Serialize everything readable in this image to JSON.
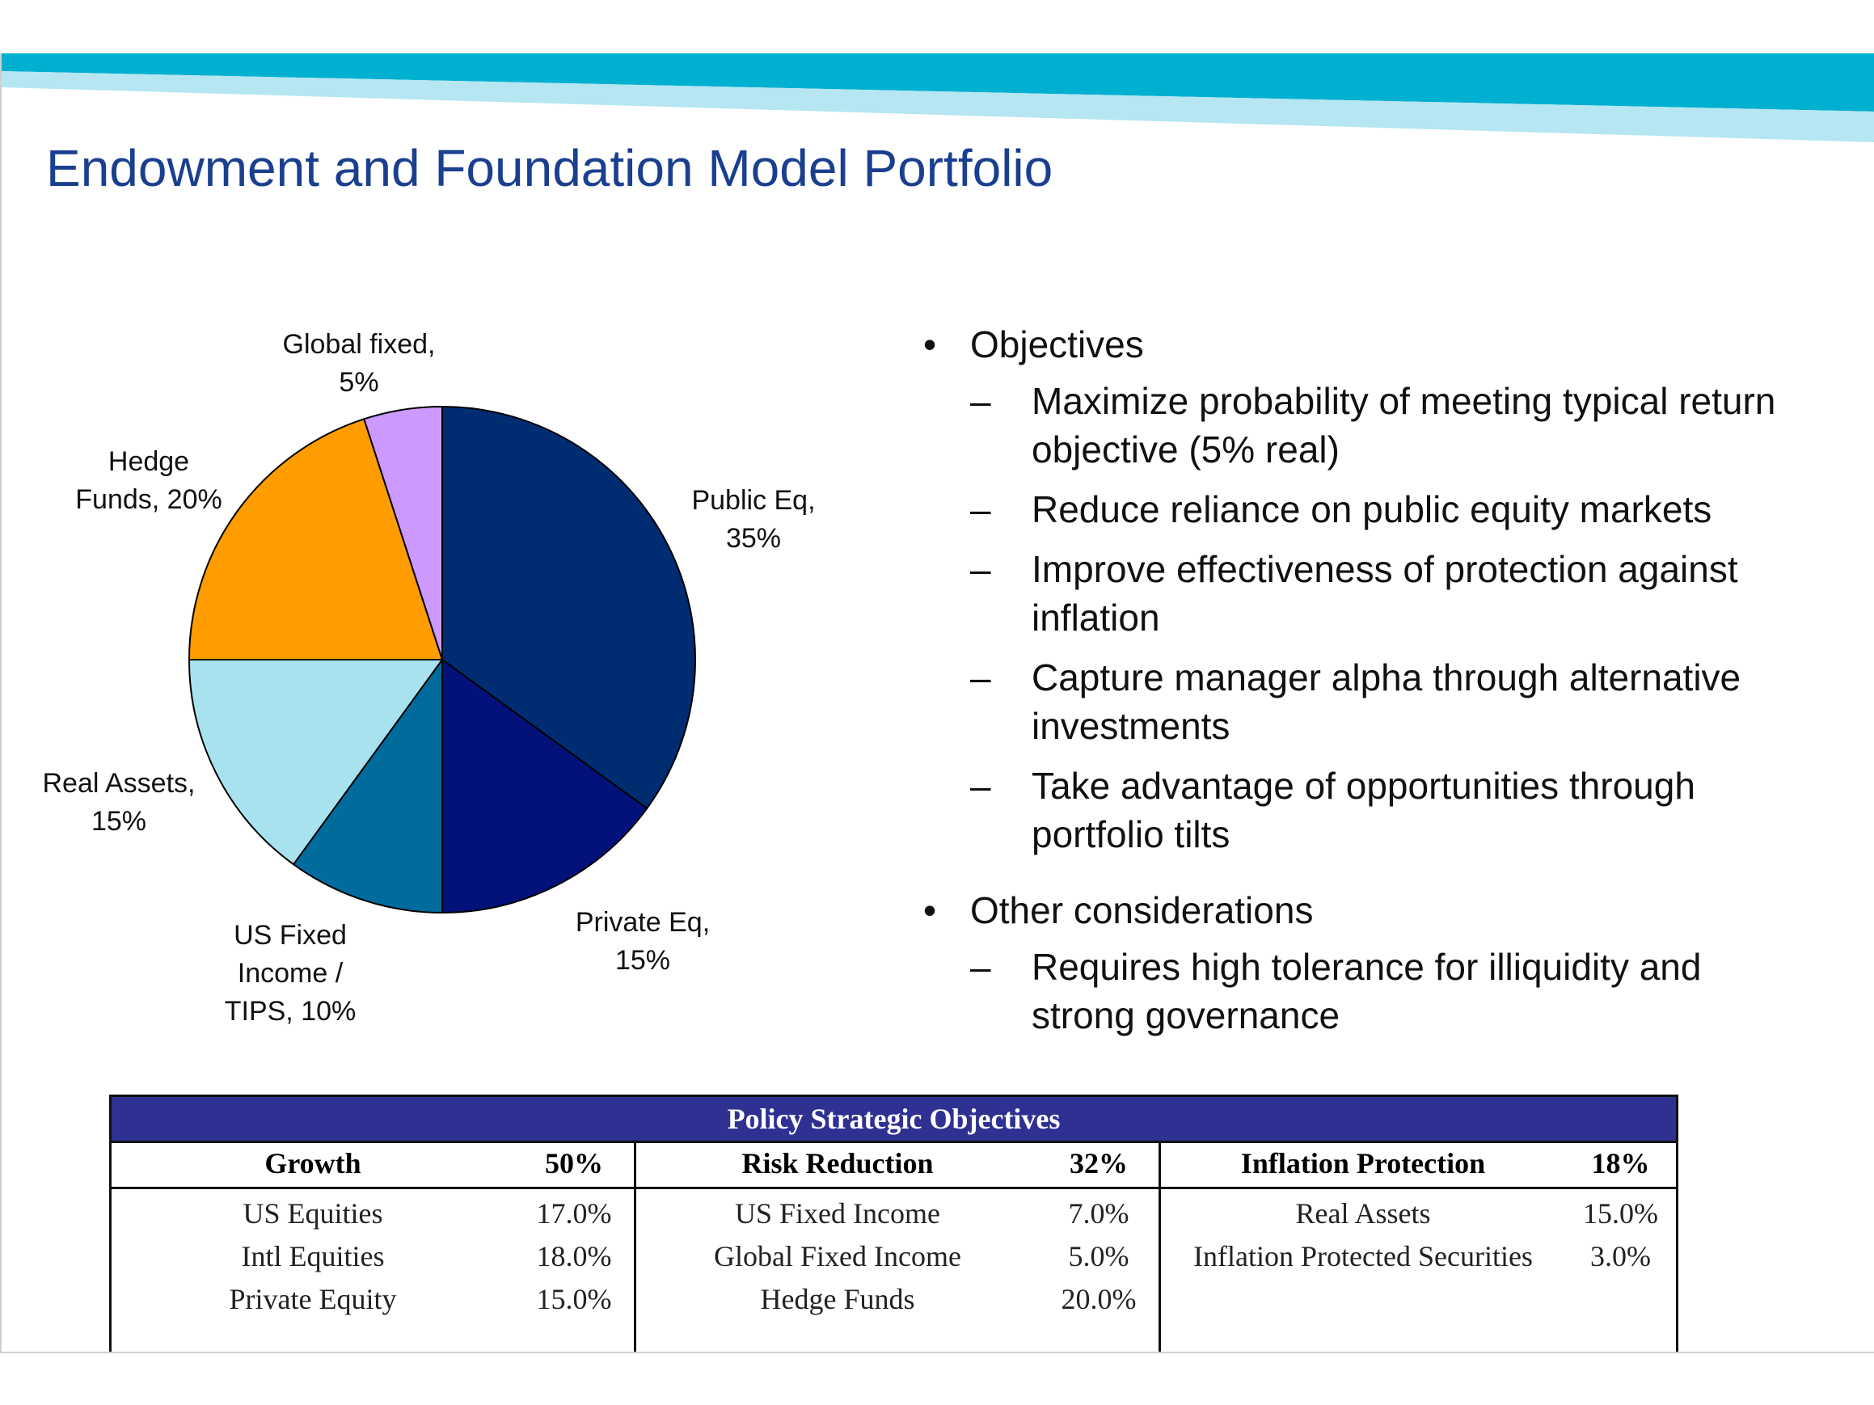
{
  "slide": {
    "title": "Endowment and Foundation Model Portfolio"
  },
  "chart_data": {
    "type": "pie",
    "title": "",
    "slices": [
      {
        "label_lines": [
          "Public Eq,",
          "35%"
        ],
        "category": "Public Eq",
        "value": 35,
        "color": "#002d72"
      },
      {
        "label_lines": [
          "Private Eq,",
          "15%"
        ],
        "category": "Private Eq",
        "value": 15,
        "color": "#03117a"
      },
      {
        "label_lines": [
          "US Fixed",
          "Income /",
          "TIPS, 10%"
        ],
        "category": "US Fixed Income / TIPS",
        "value": 10,
        "color": "#006c9e"
      },
      {
        "label_lines": [
          "Real Assets,",
          "15%"
        ],
        "category": "Real Assets",
        "value": 15,
        "color": "#a8e2ef"
      },
      {
        "label_lines": [
          "Hedge",
          "Funds, 20%"
        ],
        "category": "Hedge Funds",
        "value": 20,
        "color": "#ff9c00"
      },
      {
        "label_lines": [
          "Global fixed,",
          "5%"
        ],
        "category": "Global fixed",
        "value": 5,
        "color": "#cc99ff"
      }
    ],
    "start_angle_deg": 0,
    "direction": "clockwise",
    "legend": "none"
  },
  "bullets": {
    "objectives": {
      "heading": "Objectives",
      "items": [
        {
          "lines": [
            "Maximize probability of meeting typical return",
            "objective (5% real)"
          ]
        },
        {
          "lines": [
            "Reduce reliance on public equity markets"
          ]
        },
        {
          "lines": [
            "Improve effectiveness of protection against",
            "inflation"
          ]
        },
        {
          "lines": [
            "Capture manager alpha through alternative",
            "investments"
          ]
        },
        {
          "lines": [
            "Take advantage of opportunities through",
            "portfolio tilts"
          ]
        }
      ]
    },
    "other": {
      "heading": "Other considerations",
      "items": [
        {
          "lines": [
            "Requires high tolerance for illiquidity and",
            "strong governance"
          ]
        }
      ]
    },
    "bullet_char": "•",
    "dash_char": "–"
  },
  "policy_table": {
    "title": "Policy Strategic Objectives",
    "header_color": "#2e3192",
    "columns": [
      {
        "name": "Growth",
        "pct": "50%",
        "rows": [
          {
            "name": "US Equities",
            "pct": "17.0%"
          },
          {
            "name": "Intl Equities",
            "pct": "18.0%"
          },
          {
            "name": "Private Equity",
            "pct": "15.0%"
          }
        ]
      },
      {
        "name": "Risk Reduction",
        "pct": "32%",
        "rows": [
          {
            "name": "US Fixed Income",
            "pct": "7.0%"
          },
          {
            "name": "Global Fixed Income",
            "pct": "5.0%"
          },
          {
            "name": "Hedge Funds",
            "pct": "20.0%"
          }
        ]
      },
      {
        "name": "Inflation Protection",
        "pct": "18%",
        "rows": [
          {
            "name": "Real Assets",
            "pct": "15.0%"
          },
          {
            "name": "Inflation Protected Securities",
            "pct": "3.0%"
          }
        ]
      }
    ]
  },
  "colors": {
    "title": "#1a3f8f",
    "band_dark": "#00b0d0",
    "band_light": "#b5e6f2"
  }
}
